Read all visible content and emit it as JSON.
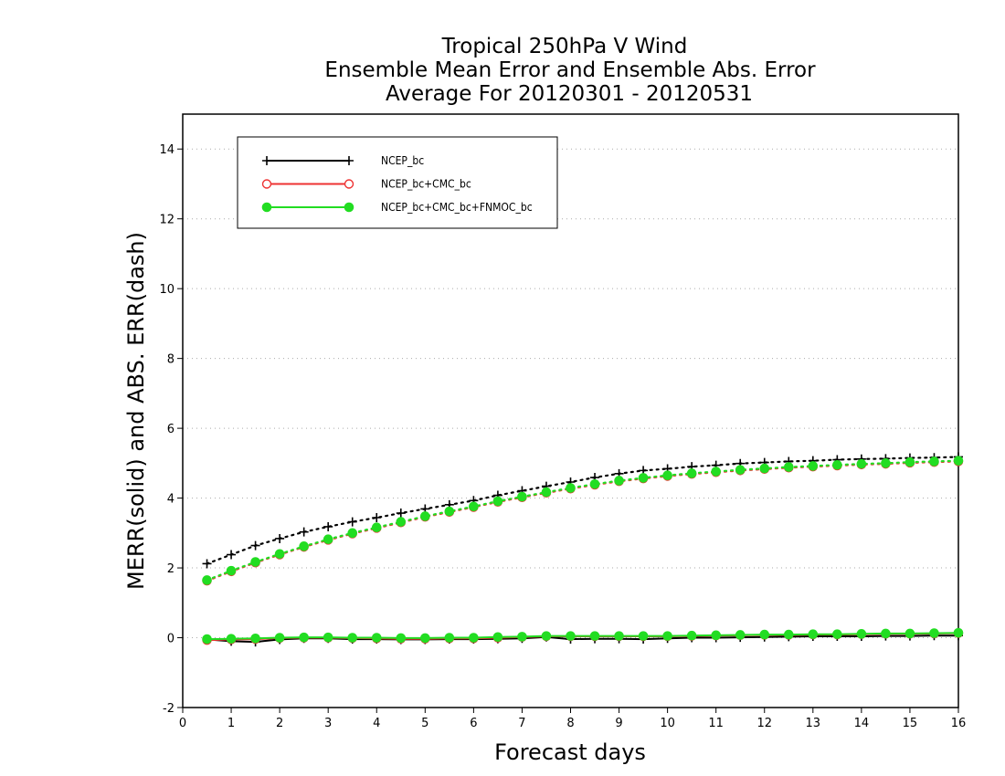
{
  "chart_data": {
    "type": "line",
    "title": [
      "Tropical 250hPa V Wind",
      "Ensemble Mean Error and Ensemble Abs. Error",
      "Average For 20120301 - 20120531"
    ],
    "xlabel": "Forecast days",
    "ylabel": "MERR(solid) and ABS. ERR(dash)",
    "xlim": [
      0,
      16
    ],
    "ylim": [
      -2,
      15
    ],
    "xticks": [
      0,
      1,
      2,
      3,
      4,
      5,
      6,
      7,
      8,
      9,
      10,
      11,
      12,
      13,
      14,
      15,
      16
    ],
    "yticks": [
      -2,
      0,
      2,
      4,
      6,
      8,
      10,
      12,
      14
    ],
    "grid": true,
    "legend_position": "top-left",
    "x": [
      0.5,
      1.0,
      1.5,
      2.0,
      2.5,
      3.0,
      3.5,
      4.0,
      4.5,
      5.0,
      5.5,
      6.0,
      6.5,
      7.0,
      7.5,
      8.0,
      8.5,
      9.0,
      9.5,
      10.0,
      10.5,
      11.0,
      11.5,
      12.0,
      12.5,
      13.0,
      13.5,
      14.0,
      14.5,
      15.0,
      15.5,
      16.0
    ],
    "series": [
      {
        "name": "NCEP_bc",
        "color": "#000000",
        "marker": "plus",
        "merr": [
          -0.05,
          -0.1,
          -0.12,
          -0.05,
          -0.02,
          -0.02,
          -0.04,
          -0.04,
          -0.05,
          -0.05,
          -0.04,
          -0.04,
          -0.03,
          -0.02,
          0.02,
          -0.04,
          -0.03,
          -0.03,
          -0.04,
          -0.02,
          0.0,
          0.0,
          0.01,
          0.02,
          0.03,
          0.04,
          0.04,
          0.04,
          0.05,
          0.05,
          0.06,
          0.06
        ],
        "abs_err": [
          2.12,
          2.38,
          2.64,
          2.84,
          3.03,
          3.18,
          3.32,
          3.44,
          3.57,
          3.69,
          3.81,
          3.93,
          4.08,
          4.21,
          4.34,
          4.46,
          4.59,
          4.7,
          4.79,
          4.84,
          4.9,
          4.94,
          4.99,
          5.02,
          5.05,
          5.07,
          5.1,
          5.12,
          5.13,
          5.15,
          5.16,
          5.18
        ]
      },
      {
        "name": "NCEP_bc+CMC_bc",
        "color": "#ee3333",
        "marker": "circle-open",
        "merr": [
          -0.07,
          -0.05,
          -0.04,
          -0.01,
          0.0,
          0.0,
          -0.01,
          -0.02,
          -0.03,
          -0.03,
          -0.02,
          -0.02,
          0.0,
          0.02,
          0.04,
          0.04,
          0.04,
          0.04,
          0.04,
          0.04,
          0.05,
          0.06,
          0.07,
          0.08,
          0.08,
          0.09,
          0.09,
          0.1,
          0.11,
          0.11,
          0.12,
          0.13
        ],
        "abs_err": [
          1.63,
          1.9,
          2.15,
          2.38,
          2.6,
          2.8,
          2.98,
          3.14,
          3.3,
          3.46,
          3.6,
          3.74,
          3.89,
          4.02,
          4.15,
          4.27,
          4.38,
          4.48,
          4.56,
          4.63,
          4.69,
          4.74,
          4.79,
          4.83,
          4.87,
          4.9,
          4.93,
          4.96,
          4.98,
          5.01,
          5.03,
          5.05
        ]
      },
      {
        "name": "NCEP_bc+CMC_bc+FNMOC_bc",
        "color": "#22dd22",
        "marker": "circle-filled",
        "merr": [
          -0.04,
          -0.03,
          -0.02,
          0.0,
          0.01,
          0.01,
          0.0,
          0.0,
          -0.01,
          -0.01,
          0.0,
          0.0,
          0.02,
          0.03,
          0.05,
          0.05,
          0.05,
          0.05,
          0.05,
          0.05,
          0.06,
          0.07,
          0.08,
          0.09,
          0.09,
          0.1,
          0.1,
          0.11,
          0.12,
          0.12,
          0.13,
          0.14
        ],
        "abs_err": [
          1.65,
          1.92,
          2.17,
          2.4,
          2.62,
          2.82,
          3.0,
          3.16,
          3.32,
          3.48,
          3.62,
          3.76,
          3.91,
          4.04,
          4.17,
          4.29,
          4.4,
          4.5,
          4.58,
          4.65,
          4.71,
          4.76,
          4.81,
          4.85,
          4.89,
          4.92,
          4.95,
          4.98,
          5.0,
          5.03,
          5.05,
          5.07
        ]
      }
    ]
  }
}
